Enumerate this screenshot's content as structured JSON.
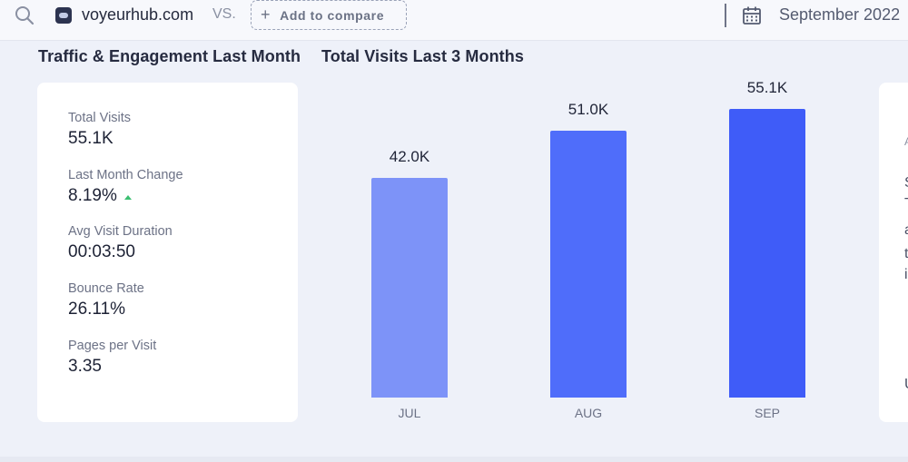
{
  "topbar": {
    "site_name": "voyeurhub.com",
    "vs_label": "VS.",
    "add_compare_label": "Add to compare",
    "date_label": "September 2022"
  },
  "sections": {
    "left_title": "Traffic & Engagement Last Month",
    "right_title": "Total Visits Last 3 Months"
  },
  "metrics": [
    {
      "label": "Total Visits",
      "value": "55.1K"
    },
    {
      "label": "Last Month Change",
      "value": "8.19%",
      "trend": "up"
    },
    {
      "label": "Avg Visit Duration",
      "value": "00:03:50"
    },
    {
      "label": "Bounce Rate",
      "value": "26.11%"
    },
    {
      "label": "Pages per Visit",
      "value": "3.35"
    }
  ],
  "side_card": {
    "fragments": [
      "A",
      "S",
      "T",
      "a",
      "t",
      "i",
      "U"
    ]
  },
  "colors": {
    "bar_light": "#7d93f8",
    "bar_mid": "#4f6dfa",
    "bar_dark": "#3f5cf8",
    "trend_up": "#3bbf71"
  },
  "chart_data": {
    "type": "bar",
    "title": "Total Visits Last 3 Months",
    "categories": [
      "JUL",
      "AUG",
      "SEP"
    ],
    "values": [
      42.0,
      51.0,
      55.1
    ],
    "value_labels": [
      "42.0K",
      "51.0K",
      "55.1K"
    ],
    "unit": "K visits",
    "ylim": [
      0,
      63.5
    ],
    "grid": false,
    "legend": "none"
  }
}
